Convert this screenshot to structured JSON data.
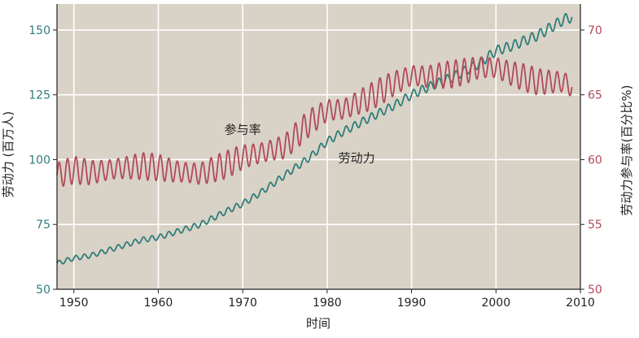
{
  "chart_data": {
    "type": "line",
    "xlabel": "时间",
    "ylabel_left": "劳动力 (百万人)",
    "ylabel_right": "劳动力参与率(百分比%)",
    "xlim": [
      1948,
      2010
    ],
    "ylim_left": [
      50,
      160
    ],
    "ylim_right": [
      50,
      72
    ],
    "x_ticks": [
      1950,
      1960,
      1970,
      1980,
      1990,
      2000,
      2010
    ],
    "yticks_left": [
      50,
      75,
      100,
      125,
      150
    ],
    "yticks_right": [
      50,
      55,
      60,
      65,
      70
    ],
    "grid": true,
    "series": [
      {
        "name": "劳动力",
        "axis": "left",
        "color": "#2e7d7a",
        "x": [
          1948,
          1950,
          1952,
          1955,
          1958,
          1960,
          1962,
          1965,
          1968,
          1970,
          1972,
          1975,
          1978,
          1980,
          1982,
          1985,
          1988,
          1990,
          1992,
          1995,
          1998,
          2000,
          2002,
          2005,
          2008,
          2009
        ],
        "values": [
          60,
          62,
          63,
          66,
          69,
          70,
          72,
          75,
          80,
          83,
          87,
          94,
          101,
          107,
          111,
          116,
          121,
          125,
          128,
          132,
          137,
          142,
          144,
          148,
          154,
          155
        ]
      },
      {
        "name": "参与率",
        "axis": "right",
        "color": "#b04a5a",
        "x": [
          1948,
          1950,
          1952,
          1955,
          1958,
          1960,
          1962,
          1965,
          1968,
          1970,
          1972,
          1975,
          1978,
          1980,
          1982,
          1985,
          1988,
          1990,
          1992,
          1995,
          1998,
          2000,
          2002,
          2005,
          2008,
          2009
        ],
        "values": [
          58.8,
          59.2,
          59.0,
          59.3,
          59.5,
          59.4,
          59.1,
          58.9,
          59.6,
          60.2,
          60.5,
          61.0,
          62.9,
          63.8,
          63.9,
          64.8,
          65.9,
          66.5,
          66.4,
          66.6,
          67.1,
          67.1,
          66.6,
          66.0,
          66.0,
          65.6
        ]
      }
    ],
    "annotations": [
      {
        "text": "参与率",
        "x": 1970,
        "y_left": 110
      },
      {
        "text": "劳动力",
        "x": 1983.5,
        "y_left": 99
      }
    ]
  }
}
